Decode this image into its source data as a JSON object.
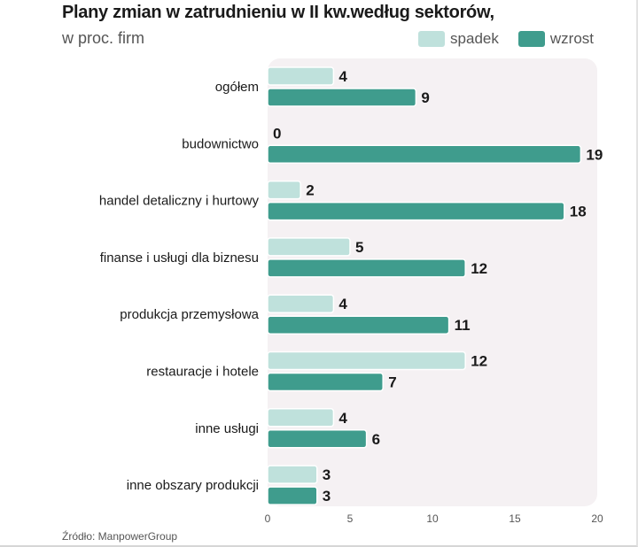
{
  "title": "Plany zmian w zatrudnieniu w II kw.według sektorów,",
  "subtitle": "w proc. firm",
  "source": "Źródło: ManpowerGroup",
  "colors": {
    "spadek": "#bfe1dc",
    "wzrost": "#3f9c8d",
    "plot_bg": "#f5f1f3"
  },
  "chart_data": {
    "type": "bar",
    "orientation": "horizontal",
    "title": "Plany zmian w zatrudnieniu w II kw.według sektorów,",
    "subtitle": "w proc. firm",
    "categories": [
      "ogółem",
      "budownictwo",
      "handel detaliczny i hurtowy",
      "finanse i usługi dla biznesu",
      "produkcja przemysłowa",
      "restauracje i hotele",
      "inne usługi",
      "inne obszary produkcji"
    ],
    "series": [
      {
        "name": "spadek",
        "values": [
          4,
          0,
          2,
          5,
          4,
          12,
          4,
          3
        ]
      },
      {
        "name": "wzrost",
        "values": [
          9,
          19,
          18,
          12,
          11,
          7,
          6,
          3
        ]
      }
    ],
    "xlim": [
      0,
      20
    ],
    "xticks": [
      0,
      5,
      10,
      15,
      20
    ],
    "legend": "top-right",
    "grid": false
  }
}
